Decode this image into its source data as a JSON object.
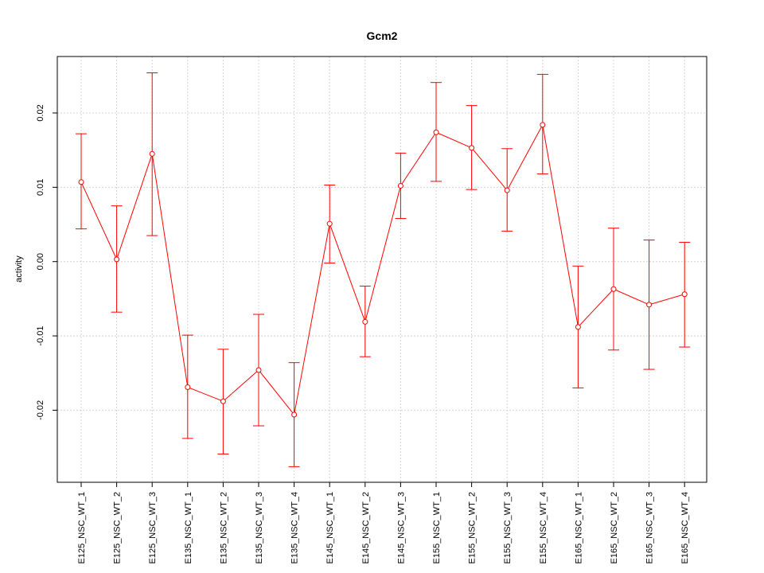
{
  "chart_data": {
    "type": "line",
    "title": "Gcm2",
    "xlabel": "",
    "ylabel": "activity",
    "categories": [
      "E125_NSC_WT_1",
      "E125_NSC_WT_2",
      "E125_NSC_WT_3",
      "E135_NSC_WT_1",
      "E135_NSC_WT_2",
      "E135_NSC_WT_3",
      "E135_NSC_WT_4",
      "E145_NSC_WT_1",
      "E145_NSC_WT_2",
      "E145_NSC_WT_3",
      "E155_NSC_WT_1",
      "E155_NSC_WT_2",
      "E155_NSC_WT_3",
      "E155_NSC_WT_4",
      "E165_NSC_WT_1",
      "E165_NSC_WT_2",
      "E165_NSC_WT_3",
      "E165_NSC_WT_4"
    ],
    "series": [
      {
        "values": [
          0.0107,
          0.0003,
          0.0145,
          -0.0169,
          -0.0188,
          -0.0146,
          -0.0206,
          0.0051,
          -0.0081,
          0.0102,
          0.0174,
          0.0153,
          0.0096,
          0.0184,
          -0.0088,
          -0.0037,
          -0.0058,
          -0.0044
        ],
        "upper": [
          0.0172,
          0.0075,
          0.0254,
          -0.0099,
          -0.0118,
          -0.0071,
          -0.0136,
          0.0103,
          -0.0033,
          0.0146,
          0.0241,
          0.021,
          0.0152,
          0.0252,
          -0.0006,
          0.0045,
          0.0029,
          0.0026
        ],
        "lower": [
          0.0044,
          -0.0068,
          0.0035,
          -0.0238,
          -0.0259,
          -0.0221,
          -0.0276,
          -0.0002,
          -0.0128,
          0.0058,
          0.0108,
          0.0097,
          0.0041,
          0.0118,
          -0.017,
          -0.0119,
          -0.0145,
          -0.0115
        ]
      }
    ],
    "yticks": [
      -0.02,
      -0.01,
      0.0,
      0.01,
      0.02
    ],
    "ytick_labels": [
      "-0.02",
      "-0.01",
      "0.00",
      "0.01",
      "0.02"
    ],
    "ylim": [
      -0.0297,
      0.0276
    ],
    "grid": true,
    "colors": {
      "series": "#ff0000",
      "grid": "#d3d3d3",
      "axis": "#000000"
    }
  }
}
